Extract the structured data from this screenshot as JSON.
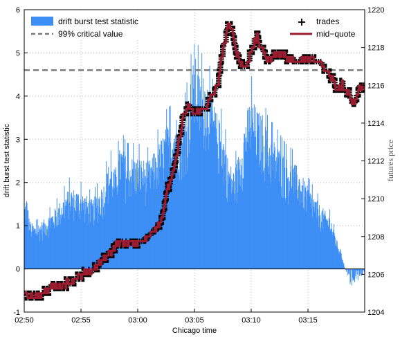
{
  "chart_data": {
    "type": "bar+line",
    "xlabel": "Chicago time",
    "ylabel_left": "drift burst test statistic",
    "ylabel_right": "futures price",
    "ylim_left": [
      -1,
      6
    ],
    "ylim_right": [
      1204,
      1220
    ],
    "xlim": [
      "02:50",
      "03:20"
    ],
    "x_ticks": [
      "02:50",
      "02:55",
      "03:00",
      "03:05",
      "03:10",
      "03:15"
    ],
    "y_ticks_left": [
      "-1",
      "0",
      "1",
      "2",
      "3",
      "4",
      "5",
      "6"
    ],
    "y_ticks_right": [
      "1204",
      "1206",
      "1208",
      "1210",
      "1212",
      "1214",
      "1216",
      "1218",
      "1220"
    ],
    "grid": true,
    "critical_value": 4.6,
    "legend_left": [
      {
        "label": "drift burst test statistic",
        "color": "#3d8ef5",
        "style": "bar"
      },
      {
        "label": "99% critical value",
        "color": "#7a7a7a",
        "style": "dashed"
      }
    ],
    "legend_right": [
      {
        "label": "trades",
        "color": "#000000",
        "style": "plus"
      },
      {
        "label": "mid−quote",
        "color": "#9b1b30",
        "style": "line"
      }
    ],
    "statistic_profile": {
      "x_minutes": [
        0,
        0.2,
        0.5,
        1,
        2,
        3,
        4,
        5,
        6,
        7,
        7.5,
        8,
        8.5,
        9,
        10,
        11,
        12,
        12.5,
        13,
        13.5,
        14,
        14.5,
        15,
        15.5,
        16,
        16.5,
        17,
        17.5,
        18,
        18.5,
        19,
        19.5,
        20,
        20.5,
        21,
        21.5,
        22,
        22.5,
        23,
        24,
        25,
        26,
        27,
        27.5,
        28,
        28.5,
        29,
        29.5,
        30
      ],
      "y_envelope": [
        1.5,
        1.7,
        1.1,
        1.0,
        1.2,
        1.5,
        1.9,
        1.8,
        1.6,
        2.0,
        2.5,
        2.3,
        2.9,
        2.6,
        2.6,
        2.5,
        3.0,
        3.3,
        3.4,
        3.6,
        3.4,
        4.1,
        5.0,
        4.4,
        4.6,
        4.0,
        3.6,
        3.2,
        2.5,
        2.3,
        2.8,
        3.6,
        4.0,
        3.7,
        3.6,
        3.1,
        3.0,
        2.8,
        2.6,
        2.4,
        1.9,
        1.5,
        1.2,
        0.7,
        0.3,
        -0.3,
        -0.6,
        -0.3,
        -0.1
      ]
    },
    "price_profile": {
      "x_minutes": [
        0,
        1,
        2,
        3,
        4,
        5,
        6,
        7,
        8,
        9,
        10,
        11,
        12,
        12.5,
        13,
        13.5,
        14,
        14.5,
        15,
        16,
        17,
        17.5,
        18,
        18.5,
        19,
        19.5,
        20,
        20.5,
        21,
        21.5,
        22,
        22.5,
        23,
        24,
        25,
        26,
        27,
        27.5,
        28,
        28.5,
        29,
        29.5,
        30
      ],
      "price": [
        1204.8,
        1204.8,
        1205.2,
        1205.4,
        1205.6,
        1205.9,
        1206.2,
        1206.8,
        1207.5,
        1207.7,
        1207.7,
        1208.0,
        1208.8,
        1210.2,
        1211.2,
        1212.5,
        1214.4,
        1214.8,
        1214.5,
        1214.8,
        1216.0,
        1217.8,
        1219.4,
        1218.2,
        1217.2,
        1217.0,
        1217.8,
        1218.6,
        1217.8,
        1217.3,
        1217.6,
        1217.8,
        1217.5,
        1217.3,
        1217.4,
        1217.2,
        1216.5,
        1215.8,
        1216.0,
        1215.7,
        1215.0,
        1215.9,
        1215.8
      ]
    }
  }
}
